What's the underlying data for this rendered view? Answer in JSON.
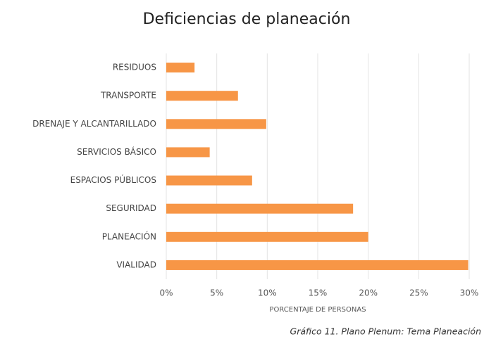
{
  "chart_data": {
    "type": "barh",
    "title": "Deficiencias de planeación",
    "categories": [
      "RESIDUOS",
      "TRANSPORTE",
      "DRENAJE Y ALCANTARILLADO",
      "SERVICIOS BÁSICO",
      "ESPACIOS PÚBLICOS",
      "SEGURIDAD",
      "PLANEACIÓN",
      "VIALIDAD"
    ],
    "values": [
      2.8,
      7.1,
      9.9,
      4.3,
      8.5,
      18.5,
      20.0,
      29.9
    ],
    "color": "#f79646",
    "xlabel": "PORCENTAJE DE PERSONAS",
    "xlim": [
      0,
      30
    ],
    "xticks": [
      {
        "value": 0,
        "label": "0%"
      },
      {
        "value": 5,
        "label": "5%"
      },
      {
        "value": 10,
        "label": "10%"
      },
      {
        "value": 15,
        "label": "15%"
      },
      {
        "value": 20,
        "label": "20%"
      },
      {
        "value": 25,
        "label": "25%"
      },
      {
        "value": 30,
        "label": "30%"
      }
    ],
    "grid": true,
    "caption": "Gráfico 11. Plano Plenum: Tema Planeación"
  }
}
